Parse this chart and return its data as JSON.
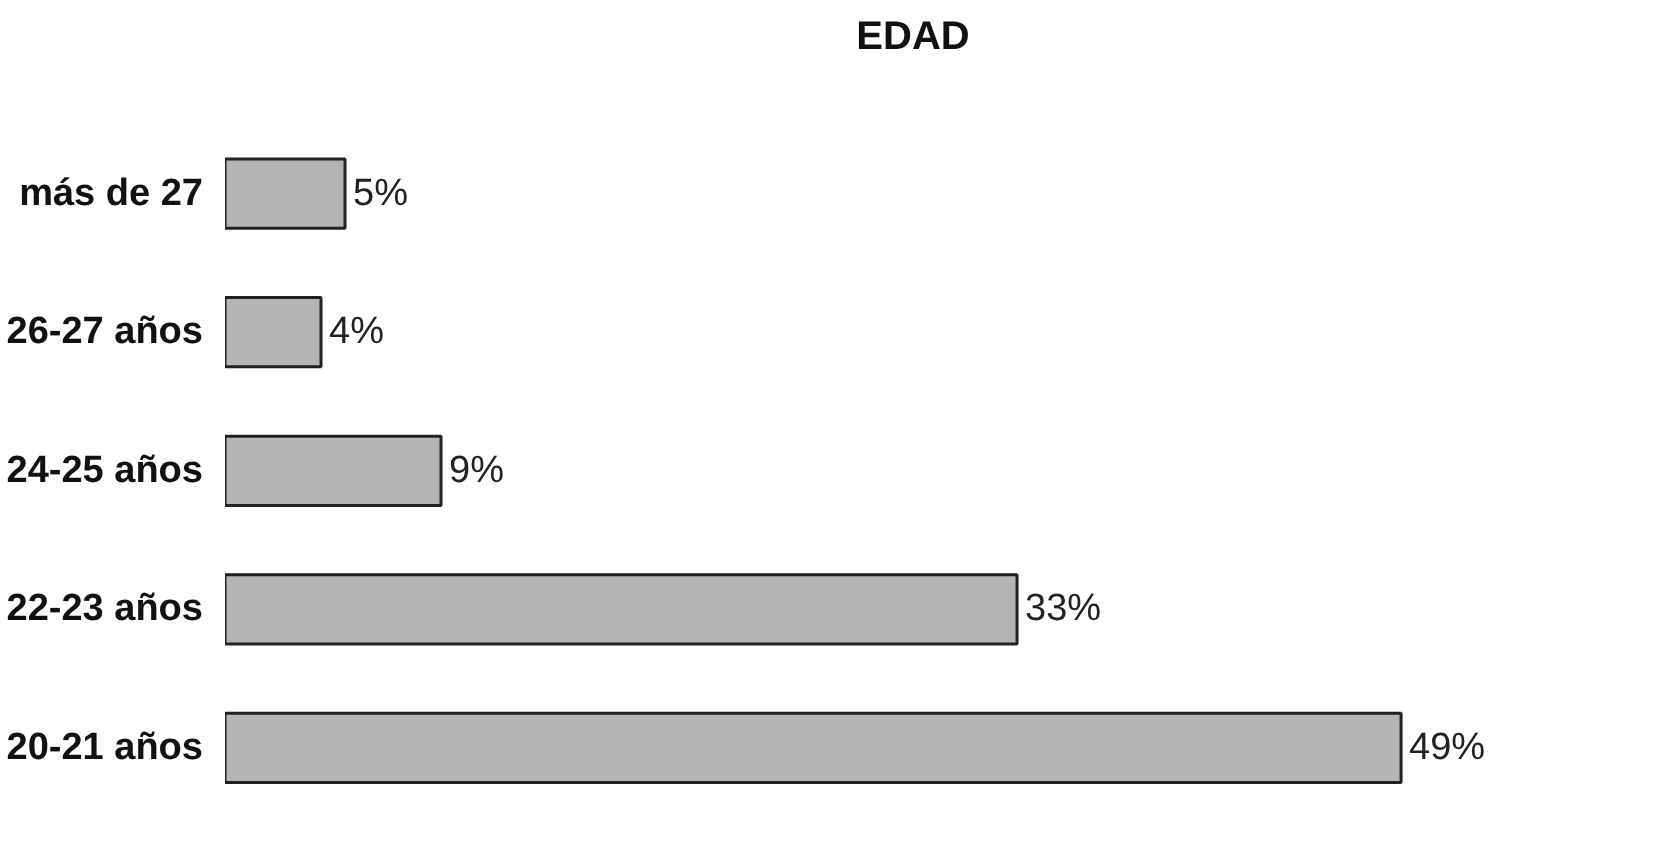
{
  "chart_data": {
    "type": "bar",
    "orientation": "horizontal",
    "title": "EDAD",
    "categories": [
      "más de 27",
      "26-27 años",
      "24-25 años",
      "22-23 años",
      "20-21 años"
    ],
    "values": [
      5,
      4,
      9,
      33,
      49
    ],
    "value_labels": [
      "5%",
      "4%",
      "9%",
      "33%",
      "49%"
    ],
    "color": "#b4b4b4"
  }
}
